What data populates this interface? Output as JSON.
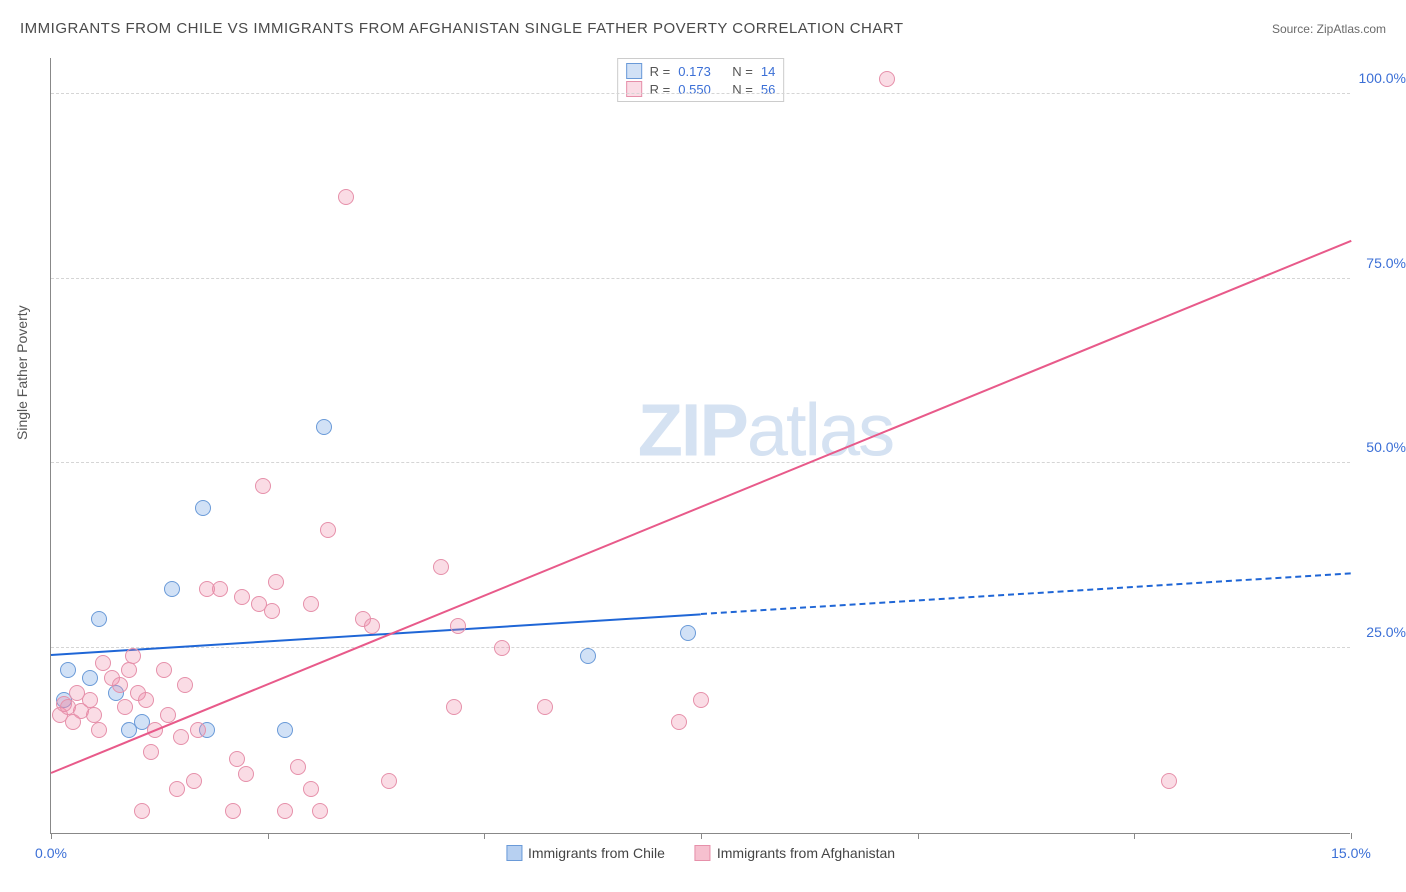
{
  "title": "IMMIGRANTS FROM CHILE VS IMMIGRANTS FROM AFGHANISTAN SINGLE FATHER POVERTY CORRELATION CHART",
  "source_label": "Source: ZipAtlas.com",
  "y_axis_label": "Single Father Poverty",
  "watermark": {
    "bold": "ZIP",
    "rest": "atlas"
  },
  "chart": {
    "type": "scatter",
    "xlim": [
      0,
      15
    ],
    "ylim": [
      0,
      105
    ],
    "x_ticks": [
      0,
      2.5,
      5,
      7.5,
      10,
      12.5,
      15
    ],
    "x_tick_labels": {
      "0": "0.0%",
      "15": "15.0%"
    },
    "y_ticks": [
      25,
      50,
      75,
      100
    ],
    "y_tick_labels": {
      "25": "25.0%",
      "50": "50.0%",
      "75": "75.0%",
      "100": "100.0%"
    },
    "grid_color": "#d5d5d5",
    "background_color": "#ffffff",
    "series": [
      {
        "name": "Immigrants from Chile",
        "key": "chile",
        "marker_fill": "rgba(124,169,230,0.35)",
        "marker_stroke": "#6a9ad8",
        "trend_color": "#1f66d6",
        "R": "0.173",
        "N": "14",
        "trend": {
          "x1": 0,
          "y1": 24,
          "x2": 7.5,
          "y2": 29.5,
          "x2_ext": 15,
          "y2_ext": 35
        },
        "points": [
          {
            "x": 0.15,
            "y": 18
          },
          {
            "x": 0.2,
            "y": 22
          },
          {
            "x": 0.45,
            "y": 21
          },
          {
            "x": 0.55,
            "y": 29
          },
          {
            "x": 0.75,
            "y": 19
          },
          {
            "x": 0.9,
            "y": 14
          },
          {
            "x": 1.05,
            "y": 15
          },
          {
            "x": 1.4,
            "y": 33
          },
          {
            "x": 1.75,
            "y": 44
          },
          {
            "x": 1.8,
            "y": 14
          },
          {
            "x": 2.7,
            "y": 14
          },
          {
            "x": 3.15,
            "y": 55
          },
          {
            "x": 6.2,
            "y": 24
          },
          {
            "x": 7.35,
            "y": 27
          }
        ]
      },
      {
        "name": "Immigrants from Afghanistan",
        "key": "afghanistan",
        "marker_fill": "rgba(238,140,168,0.30)",
        "marker_stroke": "#e690aa",
        "trend_color": "#e85a8a",
        "R": "0.550",
        "N": "56",
        "trend": {
          "x1": 0,
          "y1": 8,
          "x2": 15,
          "y2": 80
        },
        "points": [
          {
            "x": 0.1,
            "y": 16
          },
          {
            "x": 0.15,
            "y": 17.5
          },
          {
            "x": 0.2,
            "y": 17
          },
          {
            "x": 0.25,
            "y": 15
          },
          {
            "x": 0.3,
            "y": 19
          },
          {
            "x": 0.35,
            "y": 16.5
          },
          {
            "x": 0.45,
            "y": 18
          },
          {
            "x": 0.5,
            "y": 16
          },
          {
            "x": 0.55,
            "y": 14
          },
          {
            "x": 0.6,
            "y": 23
          },
          {
            "x": 0.7,
            "y": 21
          },
          {
            "x": 0.8,
            "y": 20
          },
          {
            "x": 0.85,
            "y": 17
          },
          {
            "x": 0.9,
            "y": 22
          },
          {
            "x": 0.95,
            "y": 24
          },
          {
            "x": 1.0,
            "y": 19
          },
          {
            "x": 1.05,
            "y": 3
          },
          {
            "x": 1.1,
            "y": 18
          },
          {
            "x": 1.15,
            "y": 11
          },
          {
            "x": 1.2,
            "y": 14
          },
          {
            "x": 1.3,
            "y": 22
          },
          {
            "x": 1.35,
            "y": 16
          },
          {
            "x": 1.45,
            "y": 6
          },
          {
            "x": 1.5,
            "y": 13
          },
          {
            "x": 1.55,
            "y": 20
          },
          {
            "x": 1.65,
            "y": 7
          },
          {
            "x": 1.7,
            "y": 14
          },
          {
            "x": 1.8,
            "y": 33
          },
          {
            "x": 1.95,
            "y": 33
          },
          {
            "x": 2.1,
            "y": 3
          },
          {
            "x": 2.15,
            "y": 10
          },
          {
            "x": 2.2,
            "y": 32
          },
          {
            "x": 2.25,
            "y": 8
          },
          {
            "x": 2.4,
            "y": 31
          },
          {
            "x": 2.45,
            "y": 47
          },
          {
            "x": 2.55,
            "y": 30
          },
          {
            "x": 2.6,
            "y": 34
          },
          {
            "x": 2.7,
            "y": 3
          },
          {
            "x": 2.85,
            "y": 9
          },
          {
            "x": 3.0,
            "y": 31
          },
          {
            "x": 3.0,
            "y": 6
          },
          {
            "x": 3.1,
            "y": 3
          },
          {
            "x": 3.2,
            "y": 41
          },
          {
            "x": 3.4,
            "y": 86
          },
          {
            "x": 3.6,
            "y": 29
          },
          {
            "x": 3.7,
            "y": 28
          },
          {
            "x": 3.9,
            "y": 7
          },
          {
            "x": 4.5,
            "y": 36
          },
          {
            "x": 4.65,
            "y": 17
          },
          {
            "x": 4.7,
            "y": 28
          },
          {
            "x": 5.2,
            "y": 25
          },
          {
            "x": 5.7,
            "y": 17
          },
          {
            "x": 7.25,
            "y": 15
          },
          {
            "x": 7.5,
            "y": 18
          },
          {
            "x": 9.65,
            "y": 102
          },
          {
            "x": 12.9,
            "y": 7
          }
        ]
      }
    ]
  },
  "legend_bottom": [
    {
      "label": "Immigrants from Chile",
      "fill": "rgba(124,169,230,0.55)",
      "stroke": "#6a9ad8"
    },
    {
      "label": "Immigrants from Afghanistan",
      "fill": "rgba(238,140,168,0.55)",
      "stroke": "#e690aa"
    }
  ]
}
